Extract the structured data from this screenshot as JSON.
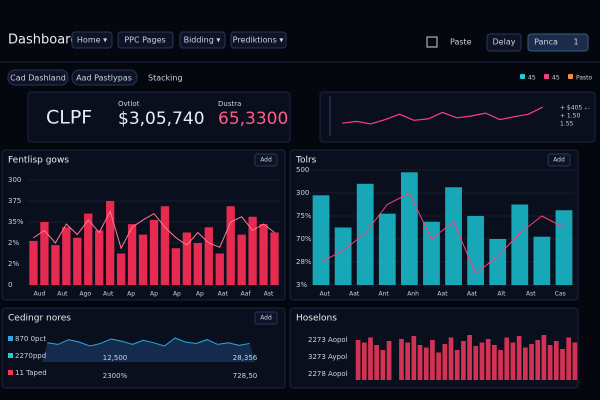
{
  "header": {
    "title": "Dashboard",
    "nav": [
      "Home ▾",
      "PPC Pages",
      "Bidding ▾",
      "Prediktions ▾"
    ],
    "actions": [
      "Paste",
      "Delay",
      "Panca",
      "1"
    ]
  },
  "tabs": [
    "Cad Dashland",
    "Aad Pastlypas",
    "Stacking"
  ],
  "legend": [
    {
      "label": "45",
      "color": "#1fd1d1"
    },
    {
      "label": "45",
      "color": "#ff3d7f"
    },
    {
      "label": "Pasto",
      "color": "#ff8a3d"
    }
  ],
  "kpis": {
    "name": "CLPF",
    "items": [
      {
        "label": "Ovtlot",
        "value": "$3,05,740",
        "color": "#e8ecf4"
      },
      {
        "label": "Dustra",
        "value": "65,3300",
        "color": "#ff5c8a"
      }
    ]
  },
  "trend": {
    "values": [
      30,
      35,
      28,
      40,
      55,
      38,
      42,
      60,
      45,
      50,
      58,
      40,
      48,
      55,
      75
    ],
    "ylim": [
      0,
      100
    ],
    "color": "#ff3d7f",
    "labels": [
      "+ $405 ₊₋",
      "+ 1.50",
      "1.55"
    ]
  },
  "charts": [
    {
      "type": "bar",
      "title": "Fentlisp gows",
      "button": "Add",
      "color": "#ff2e55",
      "line_color": "#ff7a8a",
      "ylim": [
        0,
        100
      ],
      "yticks": [
        "300",
        "375",
        "35%",
        "2%",
        "2%",
        "0"
      ],
      "xlabels": [
        "Aud",
        "Aut",
        "Ago",
        "Aut",
        "Ap",
        "Ap",
        "Ap",
        "Ap",
        "Aat",
        "Aaf",
        "Ast"
      ],
      "values": [
        42,
        60,
        38,
        55,
        45,
        68,
        52,
        80,
        30,
        58,
        48,
        62,
        75,
        35,
        50,
        40,
        55,
        30,
        75,
        48,
        65,
        58,
        50
      ],
      "line_values": [
        45,
        52,
        40,
        58,
        48,
        62,
        50,
        70,
        35,
        55,
        62,
        68,
        55,
        45,
        38,
        50,
        40,
        36,
        60,
        65,
        52,
        58,
        50
      ]
    },
    {
      "type": "bar",
      "title": "Tolrs",
      "button": "Add",
      "color": "#19b8c8",
      "line_color": "#ff3d7f",
      "ylim": [
        0,
        100
      ],
      "yticks": [
        "500",
        "300",
        "75%",
        "70%",
        "28%",
        "3%"
      ],
      "xlabels": [
        "Aut",
        "Aat",
        "Ant",
        "Anh",
        "Aat",
        "Aat",
        "Alt",
        "Ast",
        "Cas"
      ],
      "values": [
        78,
        50,
        88,
        62,
        98,
        55,
        85,
        60,
        40,
        70,
        42,
        65
      ],
      "line_values": [
        20,
        30,
        45,
        70,
        80,
        40,
        55,
        10,
        25,
        45,
        60,
        50
      ]
    },
    {
      "type": "area",
      "title": "Cedingr nores",
      "button": "Add",
      "color": "#2fa8e0",
      "ylim": [
        0,
        100
      ],
      "series_labels": [
        {
          "label": "870 0pct",
          "color": "#2fa8e0"
        },
        {
          "label": "2270ppd",
          "color": "#1fd1d1"
        },
        {
          "label": "11 Taped",
          "color": "#ff2e55"
        }
      ],
      "annotations": [
        "12,500",
        "28,356",
        "2300%",
        "728,50"
      ],
      "values": [
        60,
        55,
        70,
        62,
        50,
        58,
        72,
        65,
        55,
        68,
        60,
        50,
        75,
        62,
        58,
        70,
        55,
        60,
        52,
        58
      ]
    },
    {
      "type": "bar",
      "title": "Hoselons",
      "color": "#e8365a",
      "ylim": [
        0,
        100
      ],
      "ylabels": [
        "2273 Aopol",
        "3273 Aypol",
        "2278 Aopol"
      ],
      "values": [
        80,
        75,
        85,
        70,
        60,
        78,
        0,
        82,
        75,
        88,
        70,
        65,
        80,
        55,
        72,
        85,
        60,
        78,
        90,
        68,
        75,
        82,
        70,
        60,
        85,
        75,
        88,
        65,
        72,
        80,
        90,
        70,
        78,
        62,
        85,
        75
      ]
    }
  ]
}
